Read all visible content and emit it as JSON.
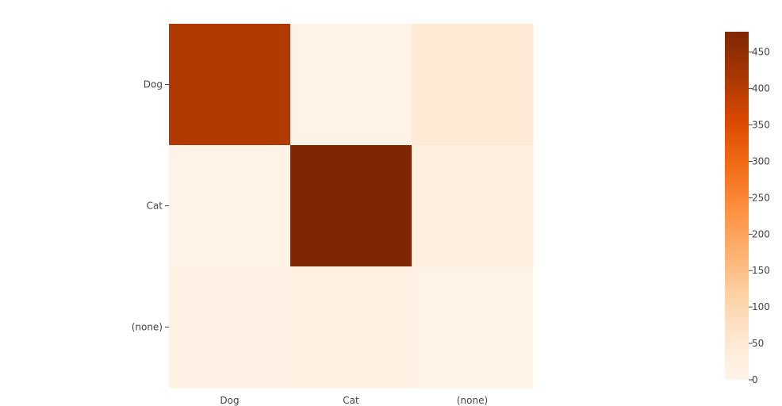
{
  "chart_data": {
    "type": "heatmap",
    "title": "",
    "xlabel": "",
    "ylabel": "",
    "x_categories": [
      "Dog",
      "Cat",
      "(none)"
    ],
    "y_categories": [
      "Dog",
      "Cat",
      "(none)"
    ],
    "z": [
      [
        405,
        8,
        45
      ],
      [
        10,
        478,
        25
      ],
      [
        12,
        18,
        8
      ]
    ],
    "colorscale": [
      "#fff5eb",
      "#fee6ce",
      "#fdd0a2",
      "#fdae6b",
      "#fd8d3c",
      "#f16913",
      "#d94801",
      "#a63603",
      "#7f2704"
    ],
    "zmin": 0,
    "zmax": 478,
    "colorbar_ticks": [
      0,
      50,
      100,
      150,
      200,
      250,
      300,
      350,
      400,
      450
    ],
    "colorbar_tick_labels": [
      "0",
      "50",
      "100",
      "150",
      "200",
      "250",
      "300",
      "350",
      "400",
      "450"
    ]
  }
}
